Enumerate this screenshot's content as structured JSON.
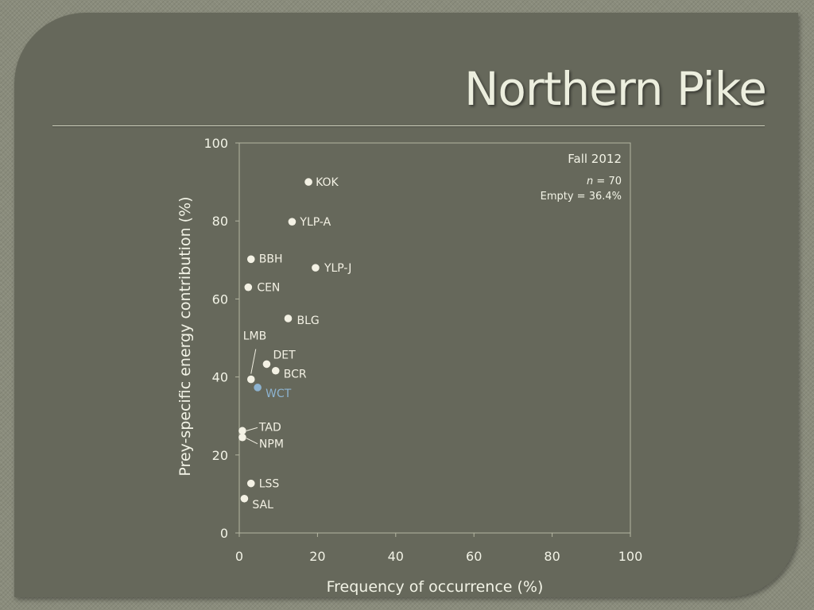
{
  "slide": {
    "title": "Northern Pike"
  },
  "chart_data": {
    "type": "scatter",
    "title": "",
    "xlabel": "Frequency of occurrence (%)",
    "ylabel": "Prey-specific energy contribution (%)",
    "xlim": [
      0,
      100
    ],
    "ylim": [
      0,
      100
    ],
    "xticks": [
      0,
      20,
      40,
      60,
      80,
      100
    ],
    "yticks": [
      0,
      20,
      40,
      60,
      80,
      100
    ],
    "grid": false,
    "annotation": {
      "season": "Fall 2012",
      "n_label": "n",
      "n_value": "= 70",
      "empty": "Empty = 36.4%"
    },
    "colors": {
      "point": "#f3f1e4",
      "highlight": "#8db3d0",
      "text": "#f2f3e6"
    },
    "points": [
      {
        "label": "KOK",
        "x": 17.7,
        "y": 90.0
      },
      {
        "label": "YLP-A",
        "x": 13.5,
        "y": 79.8
      },
      {
        "label": "BBH",
        "x": 3.0,
        "y": 70.2
      },
      {
        "label": "YLP-J",
        "x": 19.5,
        "y": 68.0
      },
      {
        "label": "CEN",
        "x": 2.3,
        "y": 63.0
      },
      {
        "label": "BLG",
        "x": 12.5,
        "y": 55.0
      },
      {
        "label": "DET",
        "x": 7.0,
        "y": 43.3
      },
      {
        "label": "BCR",
        "x": 9.3,
        "y": 41.6
      },
      {
        "label": "LMB",
        "x": 3.0,
        "y": 39.4
      },
      {
        "label": "WCT",
        "x": 4.7,
        "y": 37.3,
        "highlight": true
      },
      {
        "label": "TAD",
        "x": 0.8,
        "y": 26.2
      },
      {
        "label": "NPM",
        "x": 0.8,
        "y": 24.5
      },
      {
        "label": "LSS",
        "x": 3.0,
        "y": 12.7
      },
      {
        "label": "SAL",
        "x": 1.3,
        "y": 8.8
      }
    ]
  }
}
